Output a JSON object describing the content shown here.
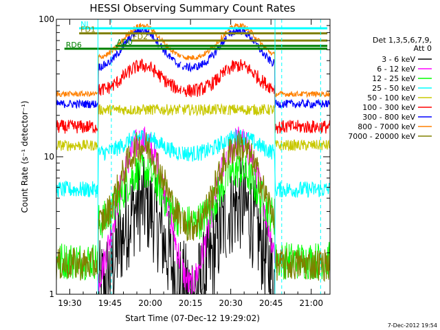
{
  "chart_data": {
    "type": "line",
    "title": "HESSI Observing Summary Count Rates",
    "xlabel": "Start Time (07-Dec-12 19:29:02)",
    "ylabel": "Count Rate (s⁻¹ detector⁻¹)",
    "yscale": "log",
    "ylim": [
      1,
      100
    ],
    "xlim_minutes_after_1930": [
      -5,
      97
    ],
    "x_ticks": [
      {
        "label": "19:30",
        "minutes": 0
      },
      {
        "label": "19:45",
        "minutes": 15
      },
      {
        "label": "20:00",
        "minutes": 30
      },
      {
        "label": "20:15",
        "minutes": 45
      },
      {
        "label": "20:30",
        "minutes": 60
      },
      {
        "label": "20:45",
        "minutes": 75
      },
      {
        "label": "21:00",
        "minutes": 90
      }
    ],
    "y_ticks": [
      {
        "label": "1",
        "value": 1
      },
      {
        "label": "10",
        "value": 10
      },
      {
        "label": "100",
        "value": 100
      }
    ],
    "legend_header": [
      "Det 1,3,5,6,7,9,",
      "Att 0"
    ],
    "series": [
      {
        "name": "3 - 6 keV",
        "color": "#000000",
        "bg": 1.0,
        "peak": 4.5,
        "noise": 0.35
      },
      {
        "name": "6 - 12 keV",
        "color": "#ff00ff",
        "bg": 1.0,
        "peak": 13,
        "noise": 0.12
      },
      {
        "name": "12 - 25 keV",
        "color": "#00ff00",
        "bg": 3.2,
        "peak": 8,
        "noise": 0.14
      },
      {
        "name": "25 - 50 keV",
        "color": "#00ffff",
        "bg": 10.5,
        "peak": 14,
        "noise": 0.06
      },
      {
        "name": "50 - 100 keV",
        "color": "#c8c800",
        "bg": 22,
        "peak": 18,
        "noise": 0.04
      },
      {
        "name": "100 - 300 keV",
        "color": "#ff0000",
        "bg": 30,
        "peak": 46,
        "noise": 0.05
      },
      {
        "name": "300 - 800 keV",
        "color": "#0000ff",
        "bg": 44,
        "peak": 83,
        "noise": 0.03
      },
      {
        "name": "800 - 7000 keV",
        "color": "#ff8000",
        "bg": 52,
        "peak": 90,
        "noise": 0.02
      },
      {
        "name": "7000 - 20000 keV",
        "color": "#808000",
        "bg": 3.0,
        "peak": 12,
        "noise": 0.12
      }
    ],
    "flag_annotations": [
      {
        "label": "NI",
        "color": "#00ffff",
        "start": 3.5,
        "end": 96,
        "level": 86
      },
      {
        "label": "FD1",
        "color": "#808000",
        "start": 3.5,
        "end": 96,
        "level": 79
      },
      {
        "label": "FD2",
        "color": "#808000",
        "start": 23,
        "end": 96,
        "level": 70
      },
      {
        "label": "AD0",
        "color": "#008000",
        "start": 17,
        "end": 96,
        "level": 64
      },
      {
        "label": "RD6",
        "color": "#008000",
        "start": -2,
        "end": 96,
        "level": 61
      }
    ],
    "event_markers": [
      {
        "minutes": 10.5,
        "color": "#00ffff",
        "style": "solid"
      },
      {
        "minutes": 15.5,
        "color": "#00ffff",
        "style": "dashed"
      },
      {
        "minutes": 76.5,
        "color": "#00ffff",
        "style": "solid"
      },
      {
        "minutes": 79.0,
        "color": "#00ffff",
        "style": "dashed"
      },
      {
        "minutes": 93.5,
        "color": "#00ffff",
        "style": "dashed"
      }
    ],
    "night_intervals": [
      {
        "start": -5,
        "end": 10.5
      },
      {
        "start": 76.5,
        "end": 97
      }
    ],
    "saa_like_gaps": [
      {
        "start": 41.5,
        "end": 41.8
      },
      {
        "start": 58.5,
        "end": 58.8
      }
    ],
    "footer_stamp": "7-Dec-2012 19:54"
  }
}
